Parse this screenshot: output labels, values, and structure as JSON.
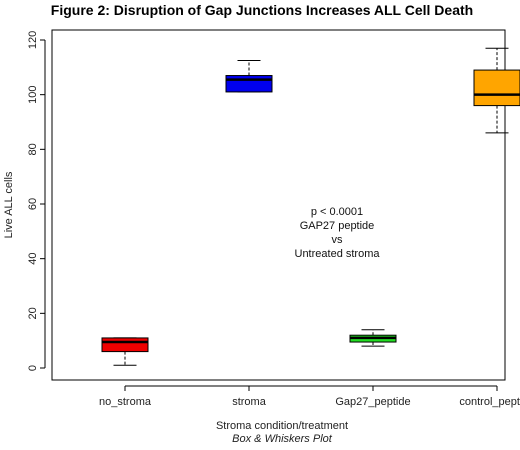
{
  "chart_data": {
    "type": "box",
    "title": "Figure 2: Disruption of Gap Junctions Increases ALL Cell Death",
    "xlabel": "Stroma condition/treatment",
    "subtitle": "Box & Whiskers Plot",
    "ylabel": "Live ALL cells",
    "ylim": [
      -3,
      122
    ],
    "yticks": [
      0,
      20,
      40,
      60,
      80,
      100,
      120
    ],
    "annotation": [
      "p < 0.0001",
      "GAP27 peptide",
      "vs",
      "Untreated stroma"
    ],
    "boxes": [
      {
        "label": "no_stroma",
        "color": "#ee0000",
        "whisker_low": 1,
        "q1": 6,
        "median": 9.5,
        "q3": 11,
        "whisker_high": 11
      },
      {
        "label": "stroma",
        "color": "#0000ee",
        "whisker_low": 101,
        "q1": 101,
        "median": 105.5,
        "q3": 107,
        "whisker_high": 112.5
      },
      {
        "label": "Gap27_peptide",
        "color": "#22dd22",
        "whisker_low": 8,
        "q1": 9.5,
        "median": 11,
        "q3": 12,
        "whisker_high": 14
      },
      {
        "label": "control_peptide",
        "color": "#ffa500",
        "whisker_low": 86,
        "q1": 96,
        "median": 100,
        "q3": 109,
        "whisker_high": 117
      }
    ]
  }
}
